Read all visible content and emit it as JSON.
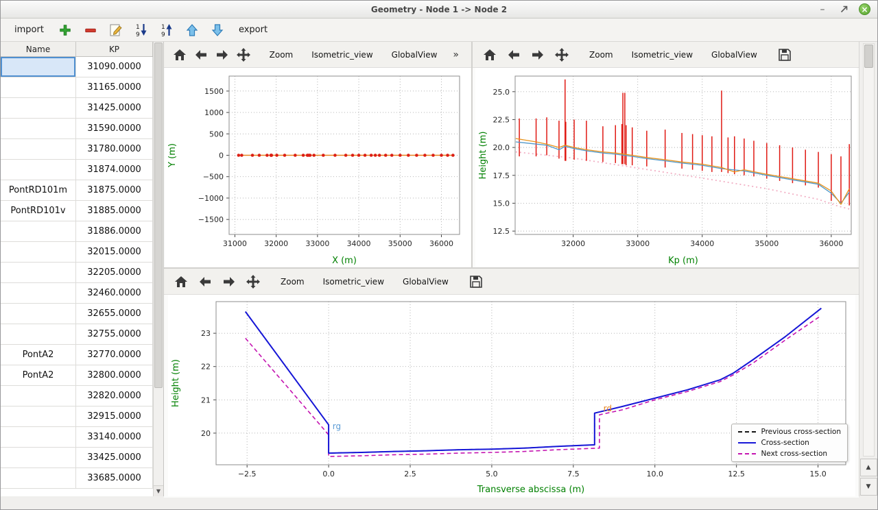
{
  "window": {
    "title": "Geometry - Node 1 -> Node 2"
  },
  "glyphs": {
    "minimize": "–",
    "close": "×",
    "scroll_up": "▲",
    "scroll_down": "▼"
  },
  "toolbar": {
    "import_label": "import",
    "export_label": "export"
  },
  "plot_toolbar": {
    "zoom": "Zoom",
    "isometric": "Isometric_view",
    "global_view": "GlobalView",
    "overflow": "»"
  },
  "table": {
    "columns": [
      "Name",
      "KP"
    ],
    "selected_row_index": 0,
    "rows": [
      {
        "name": "",
        "kp": "31090.0000"
      },
      {
        "name": "",
        "kp": "31165.0000"
      },
      {
        "name": "",
        "kp": "31425.0000"
      },
      {
        "name": "",
        "kp": "31590.0000"
      },
      {
        "name": "",
        "kp": "31780.0000"
      },
      {
        "name": "",
        "kp": "31874.0000"
      },
      {
        "name": "PontRD101m",
        "kp": "31875.0000"
      },
      {
        "name": "PontRD101v",
        "kp": "31885.0000"
      },
      {
        "name": "",
        "kp": "31886.0000"
      },
      {
        "name": "",
        "kp": "32015.0000"
      },
      {
        "name": "",
        "kp": "32205.0000"
      },
      {
        "name": "",
        "kp": "32460.0000"
      },
      {
        "name": "",
        "kp": "32655.0000"
      },
      {
        "name": "",
        "kp": "32755.0000"
      },
      {
        "name": "PontA2",
        "kp": "32770.0000"
      },
      {
        "name": "PontA2",
        "kp": "32800.0000"
      },
      {
        "name": "",
        "kp": "32820.0000"
      },
      {
        "name": "",
        "kp": "32915.0000"
      },
      {
        "name": "",
        "kp": "33140.0000"
      },
      {
        "name": "",
        "kp": "33425.0000"
      },
      {
        "name": "",
        "kp": "33685.0000"
      }
    ]
  },
  "charts": {
    "xy_view": {
      "type": "line",
      "xlabel": "X (m)",
      "ylabel": "Y (m)",
      "xlim": [
        30860,
        36440
      ],
      "ylim": [
        -1850,
        1850
      ],
      "xticks": [
        31000,
        32000,
        33000,
        34000,
        35000,
        36000
      ],
      "xticklabels": [
        "31000",
        "32000",
        "33000",
        "34000",
        "35000",
        "36000"
      ],
      "yticks": [
        -1500,
        -1000,
        -500,
        0,
        500,
        1000,
        1500
      ],
      "yticklabels": [
        "−1500",
        "−1000",
        "−500",
        "0",
        "500",
        "1000",
        "1500"
      ],
      "series": [
        {
          "kind": "line",
          "name": "river-axis",
          "color": "#e8821e",
          "w": 1.4,
          "x": [
            31090,
            36280
          ],
          "y": [
            0,
            0
          ]
        },
        {
          "kind": "markers",
          "name": "section-points",
          "color": "#dc1e14",
          "r": 2.3,
          "x": [
            31090,
            31165,
            31425,
            31590,
            31780,
            31874,
            31875,
            31885,
            31886,
            32015,
            32205,
            32460,
            32655,
            32755,
            32770,
            32800,
            32820,
            32915,
            33140,
            33425,
            33685,
            33850,
            34000,
            34150,
            34300,
            34400,
            34500,
            34650,
            34800,
            35000,
            35200,
            35400,
            35600,
            35800,
            36000,
            36150,
            36280
          ],
          "y": 0
        }
      ]
    },
    "long_profile": {
      "type": "line",
      "xlabel": "Kp (m)",
      "ylabel": "Height (m)",
      "xlim": [
        31100,
        36310
      ],
      "ylim": [
        12.2,
        26.4
      ],
      "xticks": [
        32000,
        33000,
        34000,
        35000,
        36000
      ],
      "xticklabels": [
        "32000",
        "33000",
        "34000",
        "35000",
        "36000"
      ],
      "yticks": [
        12.5,
        15.0,
        17.5,
        20.0,
        22.5,
        25.0
      ],
      "yticklabels": [
        "12.5",
        "15.0",
        "17.5",
        "20.0",
        "22.5",
        "25.0"
      ],
      "series": [
        {
          "kind": "line",
          "name": "bed-dotted",
          "color": "#f2afc4",
          "w": 1.8,
          "dash": "2 4",
          "x": [
            31110,
            32000,
            33000,
            34000,
            35000,
            35800,
            36100,
            36300
          ],
          "y": [
            19.6,
            19.05,
            18.15,
            17.25,
            16.3,
            15.35,
            14.75,
            14.45
          ]
        },
        {
          "kind": "vlines",
          "name": "cross-section-extents",
          "color": "#e01812",
          "w": 1.5,
          "x": [
            31165,
            31425,
            31590,
            31780,
            31874,
            31885,
            32015,
            32205,
            32460,
            32655,
            32755,
            32770,
            32800,
            32820,
            32915,
            33140,
            33425,
            33685,
            33850,
            34000,
            34150,
            34300,
            34400,
            34500,
            34650,
            34800,
            35000,
            35200,
            35400,
            35600,
            35800,
            36000,
            36150,
            36280
          ],
          "y1": [
            19.2,
            19.2,
            19.3,
            19.0,
            18.8,
            18.8,
            18.9,
            18.8,
            18.7,
            18.6,
            18.5,
            18.5,
            18.5,
            18.4,
            18.4,
            18.3,
            18.2,
            18.1,
            18.0,
            17.9,
            17.8,
            17.8,
            17.7,
            17.6,
            17.5,
            17.4,
            17.2,
            17.0,
            16.8,
            16.6,
            16.4,
            15.2,
            15.0,
            14.8
          ],
          "y2": [
            22.6,
            22.6,
            22.7,
            22.4,
            26.1,
            22.3,
            22.5,
            22.4,
            21.9,
            22.0,
            22.1,
            24.9,
            24.9,
            22.0,
            21.8,
            21.5,
            21.6,
            21.3,
            21.2,
            21.1,
            21.0,
            25.1,
            20.9,
            21.0,
            20.8,
            20.6,
            20.4,
            20.2,
            20.0,
            19.8,
            19.6,
            19.4,
            19.2,
            20.3
          ]
        },
        {
          "kind": "line",
          "name": "left-bank",
          "color": "#4f97c9",
          "w": 1.3,
          "x": [
            31110,
            31425,
            31590,
            31780,
            31874,
            32015,
            32205,
            32460,
            32655,
            32915,
            33140,
            33425,
            33685,
            34000,
            34300,
            34650,
            35000,
            35400,
            35800,
            36000,
            36150,
            36280
          ],
          "y": [
            20.5,
            20.3,
            20.2,
            19.8,
            20.1,
            19.9,
            19.7,
            19.5,
            19.4,
            19.2,
            19.0,
            18.8,
            18.6,
            18.4,
            18.1,
            17.9,
            17.5,
            17.1,
            16.7,
            15.9,
            15.0,
            16.0
          ]
        },
        {
          "kind": "line",
          "name": "right-bank",
          "color": "#e8921a",
          "w": 1.3,
          "x": [
            31110,
            31425,
            31590,
            31780,
            31874,
            32015,
            32205,
            32460,
            32655,
            32915,
            33140,
            33425,
            33685,
            34000,
            34300,
            34500,
            34650,
            35000,
            35400,
            35800,
            36000,
            36150,
            36280
          ],
          "y": [
            20.8,
            20.5,
            20.3,
            20.0,
            20.2,
            20.0,
            19.8,
            19.6,
            19.5,
            19.3,
            19.1,
            18.9,
            18.7,
            18.5,
            18.2,
            17.8,
            18.0,
            17.6,
            17.2,
            16.8,
            16.1,
            14.9,
            16.3
          ]
        }
      ]
    },
    "cross_section": {
      "type": "line",
      "xlabel": "Transverse abscissa (m)",
      "ylabel": "Height (m)",
      "xlim": [
        -3.45,
        15.85
      ],
      "ylim": [
        19.05,
        23.95
      ],
      "xticks": [
        -2.5,
        0,
        2.5,
        5,
        7.5,
        10,
        12.5,
        15
      ],
      "xticklabels": [
        "−2.5",
        "0.0",
        "2.5",
        "5.0",
        "7.5",
        "10.0",
        "12.5",
        "15.0"
      ],
      "yticks": [
        20,
        21,
        22,
        23
      ],
      "yticklabels": [
        "20",
        "21",
        "22",
        "23"
      ],
      "series": [
        {
          "kind": "line",
          "name": "previous-cross-section",
          "color": "#111111",
          "w": 1.6,
          "dash": "6 4",
          "x": [
            -2.55,
            0,
            0,
            1,
            2,
            3,
            4,
            5,
            6,
            7,
            8.15,
            8.15,
            9,
            10,
            11,
            12,
            12.4,
            13,
            14,
            15.1
          ],
          "y": [
            23.65,
            20.25,
            19.4,
            19.42,
            19.45,
            19.47,
            19.5,
            19.52,
            19.55,
            19.6,
            19.65,
            20.6,
            20.8,
            21.05,
            21.3,
            21.6,
            21.8,
            22.2,
            22.9,
            23.75
          ]
        },
        {
          "kind": "line",
          "name": "next-cross-section",
          "color": "#c413b0",
          "w": 1.6,
          "dash": "6 4",
          "x": [
            -2.55,
            0,
            0,
            1,
            2,
            3,
            4,
            5,
            6,
            7,
            8.3,
            8.3,
            9,
            10,
            11,
            12,
            12.4,
            13,
            14,
            15.05
          ],
          "y": [
            22.85,
            19.95,
            19.3,
            19.32,
            19.35,
            19.37,
            19.4,
            19.42,
            19.45,
            19.5,
            19.55,
            20.55,
            20.7,
            21.0,
            21.25,
            21.55,
            21.75,
            22.1,
            22.8,
            23.5
          ]
        },
        {
          "kind": "line",
          "name": "cross-section",
          "color": "#1616d8",
          "w": 2,
          "x": [
            -2.55,
            0,
            0,
            1,
            2,
            3,
            4,
            5,
            6,
            7,
            8.15,
            8.15,
            9,
            10,
            11,
            12,
            12.4,
            13,
            14,
            15.1
          ],
          "y": [
            23.65,
            20.25,
            19.4,
            19.42,
            19.45,
            19.47,
            19.5,
            19.52,
            19.55,
            19.6,
            19.65,
            20.6,
            20.8,
            21.05,
            21.3,
            21.6,
            21.8,
            22.2,
            22.9,
            23.75
          ]
        },
        {
          "kind": "text",
          "name": "rg-label",
          "color": "#5b9bd5",
          "x": 0.12,
          "y": 20.12,
          "text": "rg"
        },
        {
          "kind": "text",
          "name": "rd-label",
          "color": "#e8841a",
          "x": 8.42,
          "y": 20.66,
          "text": "rd"
        }
      ],
      "legend": [
        {
          "label": "Previous cross-section",
          "color": "#111111",
          "dash": true
        },
        {
          "label": "Cross-section",
          "color": "#1616d8",
          "dash": false
        },
        {
          "label": "Next cross-section",
          "color": "#c413b0",
          "dash": true
        }
      ]
    }
  }
}
